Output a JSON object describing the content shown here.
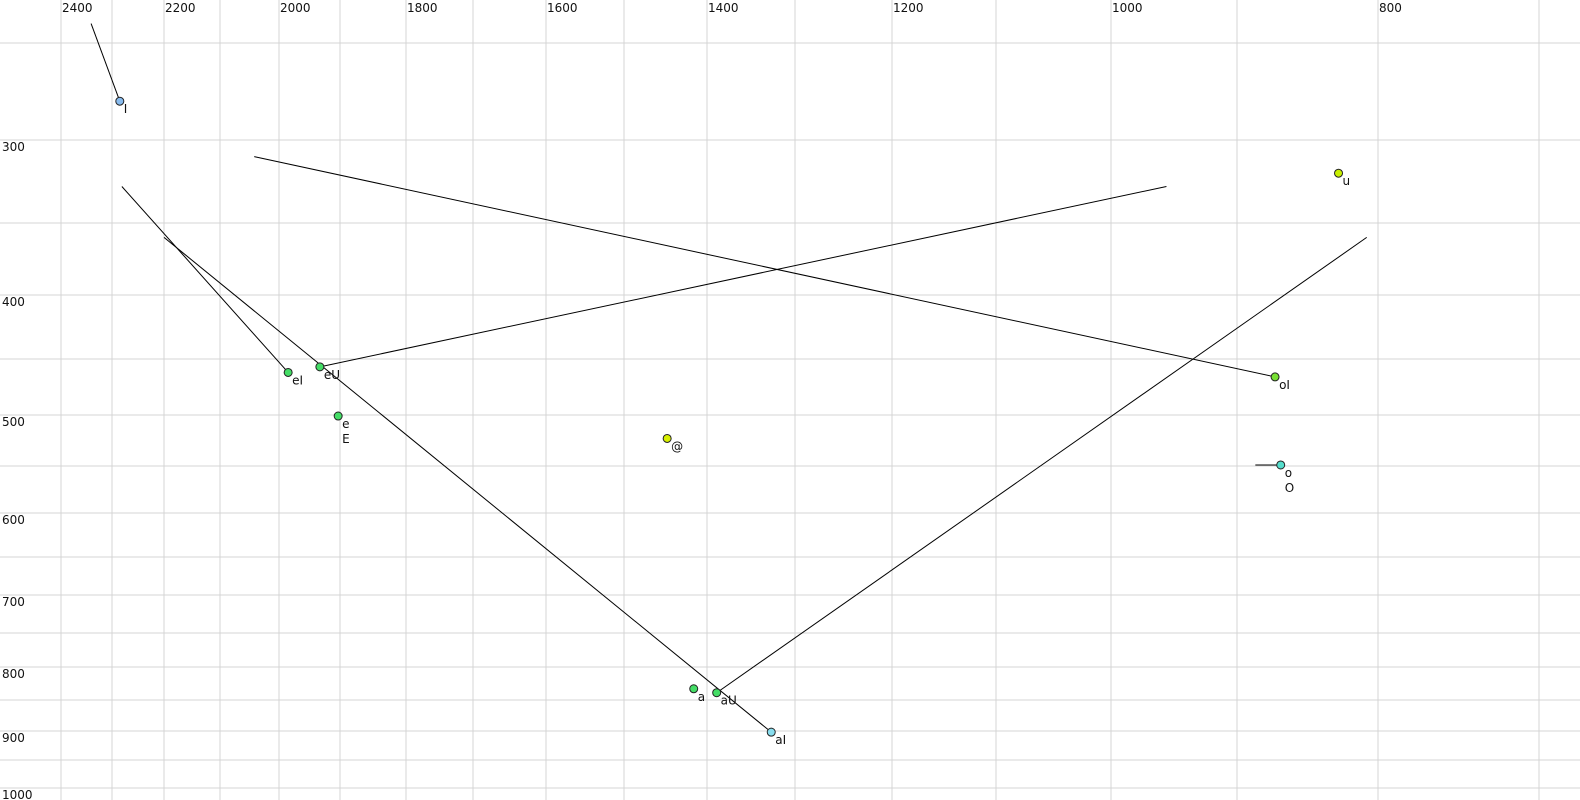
{
  "chart_data": {
    "type": "scatter",
    "title": "",
    "xlabel": "",
    "ylabel": "",
    "x_axis": {
      "position": "top",
      "reversed": true,
      "range": [
        2400,
        700
      ],
      "tick_labels": [
        2400,
        2200,
        2000,
        1800,
        1600,
        1400,
        1200,
        1000,
        800
      ],
      "grid": [
        2400,
        2300,
        2200,
        2100,
        2000,
        1900,
        1800,
        1700,
        1600,
        1500,
        1400,
        1300,
        1200,
        1100,
        1000,
        900,
        800,
        700
      ]
    },
    "y_axis": {
      "position": "left",
      "reversed": true,
      "range": [
        250,
        1000
      ],
      "tick_labels": [
        300,
        400,
        500,
        600,
        700,
        800,
        900,
        1000
      ],
      "grid": [
        250,
        300,
        350,
        400,
        450,
        500,
        550,
        600,
        650,
        700,
        750,
        800,
        850,
        900,
        950,
        1000
      ]
    },
    "grid": true,
    "legend": "none",
    "points": [
      {
        "labels": [
          "I"
        ],
        "x": 2285,
        "y": 280,
        "color": "#88bbee",
        "from": [
          2341,
          240
        ]
      },
      {
        "labels": [
          "u"
        ],
        "x": 828,
        "y": 320,
        "color": "#c8f000"
      },
      {
        "labels": [
          "eI"
        ],
        "x": 1985,
        "y": 462,
        "color": "#44dd66",
        "from": [
          2281,
          328
        ]
      },
      {
        "labels": [
          "eU"
        ],
        "x": 1933,
        "y": 457,
        "color": "#44dd66",
        "from": [
          956,
          328
        ]
      },
      {
        "labels": [
          "e",
          "E"
        ],
        "x": 1903,
        "y": 501,
        "color": "#44dd66"
      },
      {
        "labels": [
          "@"
        ],
        "x": 1448,
        "y": 523,
        "color": "#d8f000"
      },
      {
        "labels": [
          "oI"
        ],
        "x": 873,
        "y": 466,
        "color": "#77e033",
        "from": [
          2042,
          310
        ]
      },
      {
        "labels": [
          "o",
          "O"
        ],
        "x": 869,
        "y": 549,
        "color": "#55ddcc",
        "from": [
          887,
          549
        ]
      },
      {
        "labels": [
          "a"
        ],
        "x": 1416,
        "y": 833,
        "color": "#44dd66"
      },
      {
        "labels": [
          "aU"
        ],
        "x": 1389,
        "y": 839,
        "color": "#44dd66",
        "from": [
          808,
          360
        ]
      },
      {
        "labels": [
          "aI"
        ],
        "x": 1327,
        "y": 902,
        "color": "#88ddee",
        "from": [
          2200,
          360
        ]
      }
    ]
  }
}
